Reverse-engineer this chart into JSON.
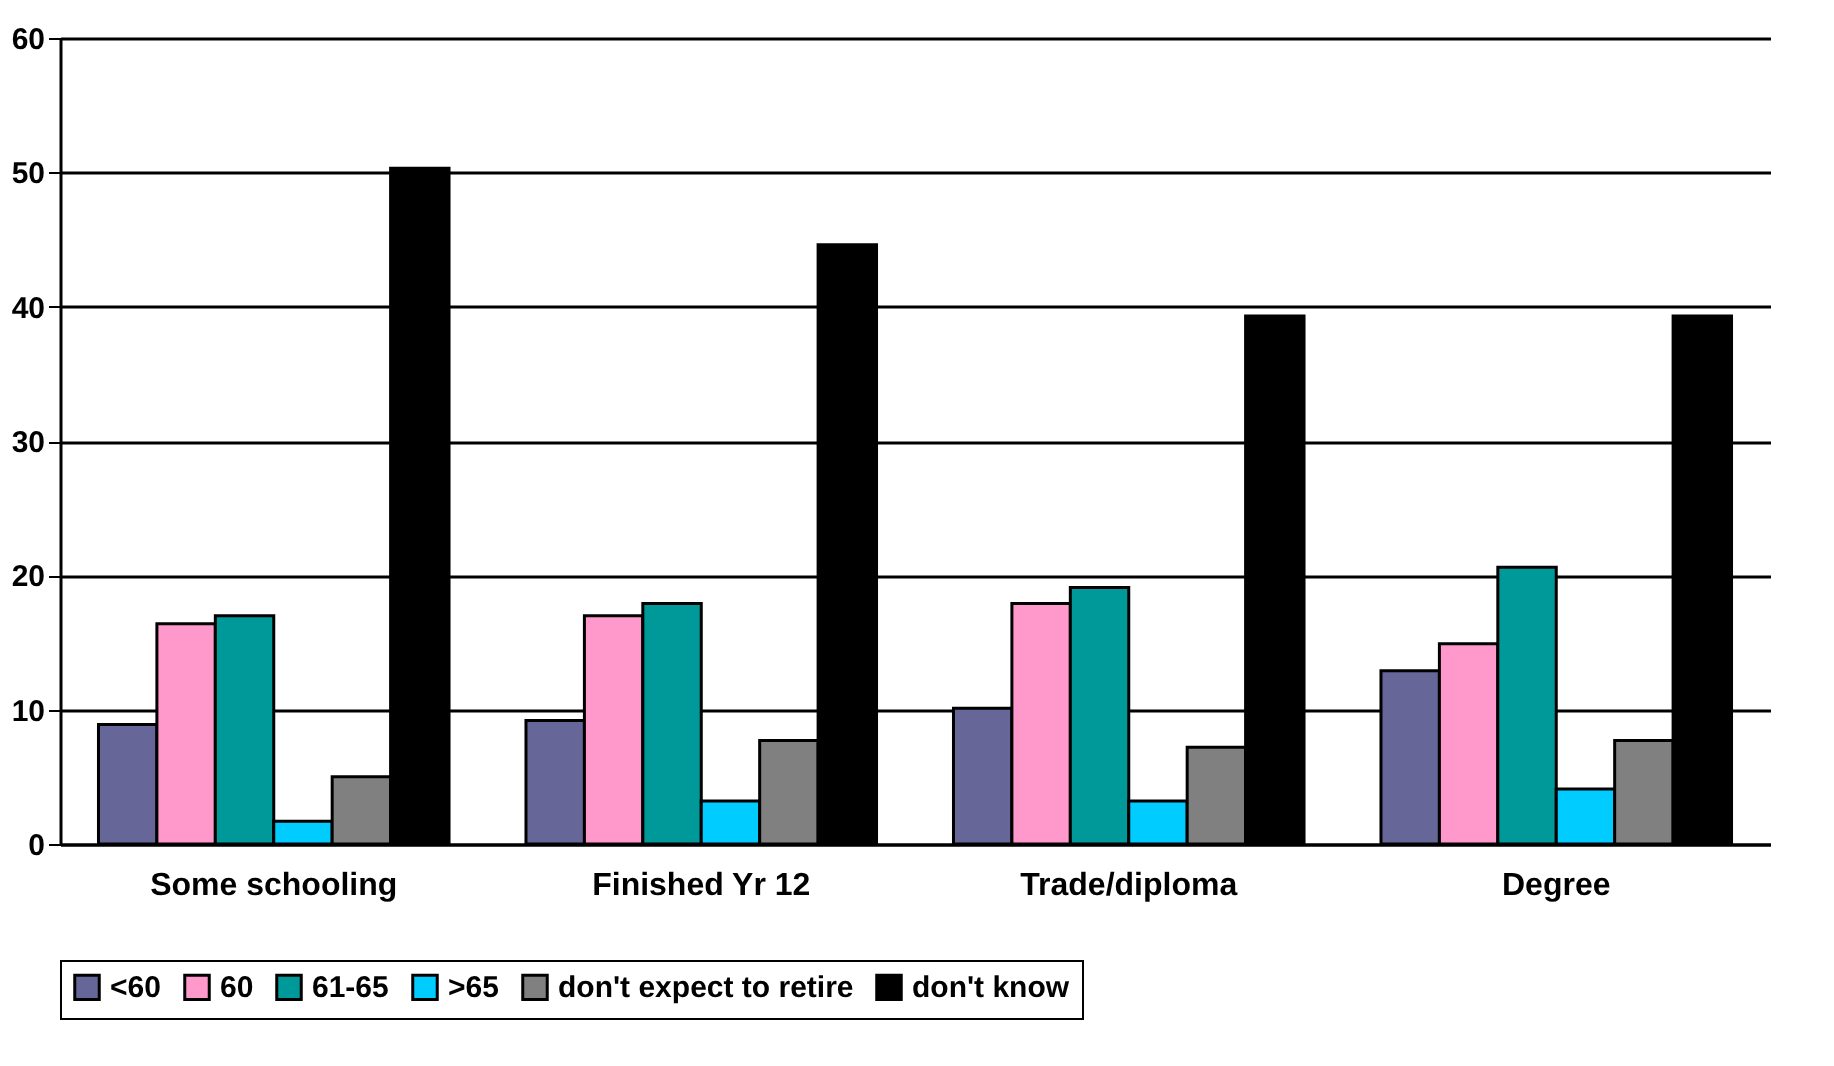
{
  "chart_data": {
    "type": "bar",
    "categories": [
      "Some schooling",
      "Finished Yr 12",
      "Trade/diploma",
      "Degree"
    ],
    "series": [
      {
        "name": "<60",
        "color": "#666699",
        "values": [
          8.9,
          9.2,
          10.1,
          12.9
        ]
      },
      {
        "name": "60",
        "color": "#ff99cc",
        "values": [
          16.4,
          17.0,
          17.9,
          14.9
        ]
      },
      {
        "name": "61-65",
        "color": "#009999",
        "values": [
          17.0,
          17.9,
          19.1,
          20.6
        ]
      },
      {
        "name": ">65",
        "color": "#00ccff",
        "values": [
          1.7,
          3.2,
          3.2,
          4.1
        ]
      },
      {
        "name": "don't expect to retire",
        "color": "#808080",
        "values": [
          5.0,
          7.7,
          7.2,
          7.7
        ]
      },
      {
        "name": "don't know",
        "color": "#000000",
        "values": [
          50.3,
          44.6,
          39.3,
          39.3
        ]
      }
    ],
    "ylim": [
      0,
      60
    ],
    "yticks": [
      0,
      10,
      20,
      30,
      40,
      50,
      60
    ],
    "grid": "y",
    "legend": "bottom"
  }
}
